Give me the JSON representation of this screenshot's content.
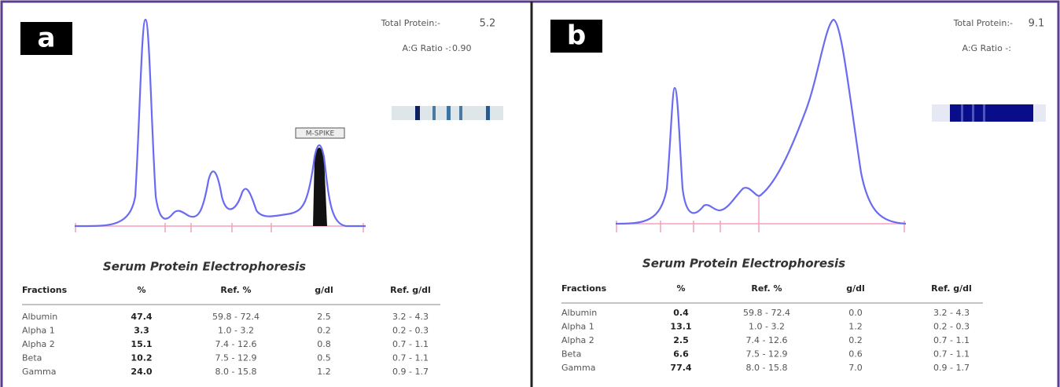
{
  "panels": [
    {
      "label": "a",
      "total_protein_label": "Total Protein:-",
      "total_protein": "5.2",
      "ag_ratio_label": "A:G Ratio -:",
      "ag_ratio": "0.90",
      "spike_label": "M-SPIKE",
      "table": {
        "title": "Serum Protein Electrophoresis",
        "header": [
          "Fractions",
          "%",
          "Ref. %",
          "g/dl",
          "Ref. g/dl"
        ],
        "rows": [
          [
            "Albumin",
            "47.4",
            "59.8 - 72.4",
            "2.5",
            "3.2 -  4.3"
          ],
          [
            "Alpha 1",
            "3.3",
            "1.0 -  3.2",
            "0.2",
            "0.2 -  0.3"
          ],
          [
            "Alpha 2",
            "15.1",
            "7.4 - 12.6",
            "0.8",
            "0.7 -  1.1"
          ],
          [
            "Beta",
            "10.2",
            "7.5 - 12.9",
            "0.5",
            "0.7 -  1.1"
          ],
          [
            "Gamma",
            "24.0",
            "8.0 - 15.8",
            "1.2",
            "0.9 -  1.7"
          ]
        ]
      }
    },
    {
      "label": "b",
      "total_protein_label": "Total Protein:-",
      "total_protein": "9.1",
      "ag_ratio_label": "A:G Ratio -:",
      "table": {
        "title": "Serum Protein Electrophoresis",
        "header": [
          "Fractions",
          "%",
          "Ref. %",
          "g/dl",
          "Ref. g/dl"
        ],
        "rows": [
          [
            "Albumin",
            "0.4",
            "59.8 - 72.4",
            "0.0",
            "3.2 -  4.3"
          ],
          [
            "Alpha 1",
            "13.1",
            "1.0 -  3.2",
            "1.2",
            "0.2 -  0.3"
          ],
          [
            "Alpha 2",
            "2.5",
            "7.4 - 12.6",
            "0.2",
            "0.7 -  1.1"
          ],
          [
            "Beta",
            "6.6",
            "7.5 - 12.9",
            "0.6",
            "0.7 -  1.1"
          ],
          [
            "Gamma",
            "77.4",
            "8.0 - 15.8",
            "7.0",
            "0.9 -  1.7"
          ]
        ]
      }
    }
  ]
}
